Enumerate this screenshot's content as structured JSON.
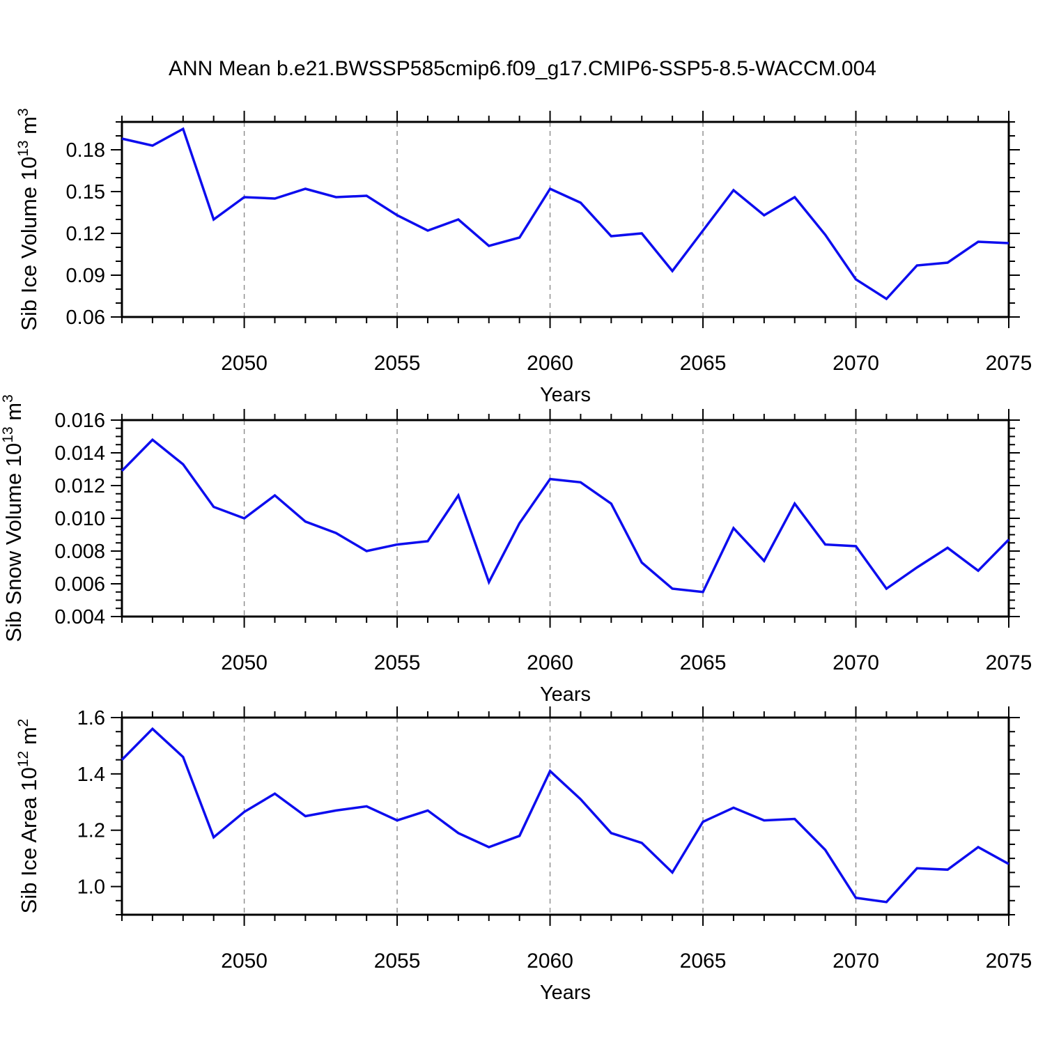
{
  "title": "ANN Mean b.e21.BWSSP585cmip6.f09_g17.CMIP6-SSP5-8.5-WACCM.004",
  "colors": {
    "line": "#0d0dee",
    "grid": "#8a8a8a",
    "axis": "#000000",
    "background": "#ffffff"
  },
  "xaxis": {
    "label": "Years",
    "start": 2046,
    "end": 2075,
    "major_ticks": [
      2050,
      2055,
      2060,
      2065,
      2070,
      2075
    ],
    "major_tick_labels": [
      "2050",
      "2055",
      "2060",
      "2065",
      "2070",
      "2075"
    ],
    "gridline_years": [
      2050,
      2055,
      2060,
      2065,
      2070
    ],
    "minor_step": 1,
    "years": [
      2046,
      2047,
      2048,
      2049,
      2050,
      2051,
      2052,
      2053,
      2054,
      2055,
      2056,
      2057,
      2058,
      2059,
      2060,
      2061,
      2062,
      2063,
      2064,
      2065,
      2066,
      2067,
      2068,
      2069,
      2070,
      2071,
      2072,
      2073,
      2074,
      2075
    ]
  },
  "chart_data": [
    {
      "type": "line",
      "name": "sib-ice-volume",
      "ylabel": "Sib Ice Volume 10^13 m^3",
      "ylabel_parts": [
        {
          "t": "Sib Ice Volume 10"
        },
        {
          "t": "13",
          "sup": true
        },
        {
          "t": " m"
        },
        {
          "t": "3",
          "sup": true
        }
      ],
      "xlabel": "Years",
      "ylim": [
        0.06,
        0.2
      ],
      "ytick_major": [
        0.06,
        0.09,
        0.12,
        0.15,
        0.18
      ],
      "ytick_labels": [
        "0.06",
        "0.09",
        "0.12",
        "0.15",
        "0.18"
      ],
      "yminor_step": 0.01,
      "grid": "x-dashed",
      "legend": "none",
      "values": [
        0.188,
        0.183,
        0.195,
        0.13,
        0.146,
        0.145,
        0.152,
        0.146,
        0.147,
        0.133,
        0.122,
        0.13,
        0.111,
        0.117,
        0.152,
        0.142,
        0.118,
        0.12,
        0.093,
        0.122,
        0.151,
        0.133,
        0.146,
        0.119,
        0.087,
        0.073,
        0.097,
        0.099,
        0.114,
        0.113
      ]
    },
    {
      "type": "line",
      "name": "sib-snow-volume",
      "ylabel": "Sib Snow Volume 10^13 m^3",
      "ylabel_parts": [
        {
          "t": "Sib Snow Volume 10"
        },
        {
          "t": "13",
          "sup": true
        },
        {
          "t": " m"
        },
        {
          "t": "3",
          "sup": true
        }
      ],
      "xlabel": "Years",
      "ylim": [
        0.004,
        0.016
      ],
      "ytick_major": [
        0.004,
        0.006,
        0.008,
        0.01,
        0.012,
        0.014,
        0.016
      ],
      "ytick_labels": [
        "0.004",
        "0.006",
        "0.008",
        "0.010",
        "0.012",
        "0.014",
        "0.016"
      ],
      "yminor_step": 0.0005,
      "grid": "x-dashed",
      "legend": "none",
      "values": [
        0.0129,
        0.0148,
        0.0133,
        0.0107,
        0.01,
        0.0114,
        0.0098,
        0.0091,
        0.008,
        0.0084,
        0.0086,
        0.0114,
        0.0061,
        0.0097,
        0.0124,
        0.0122,
        0.0109,
        0.0073,
        0.0057,
        0.0055,
        0.0094,
        0.0074,
        0.0109,
        0.0084,
        0.0083,
        0.0057,
        0.007,
        0.0082,
        0.0068,
        0.0087
      ]
    },
    {
      "type": "line",
      "name": "sib-ice-area",
      "ylabel": "Sib Ice Area 10^12 m^2",
      "ylabel_parts": [
        {
          "t": "Sib Ice Area 10"
        },
        {
          "t": "12",
          "sup": true
        },
        {
          "t": " m"
        },
        {
          "t": "2",
          "sup": true
        }
      ],
      "xlabel": "Years",
      "ylim": [
        0.9,
        1.6
      ],
      "ytick_major": [
        1.0,
        1.2,
        1.4,
        1.6
      ],
      "ytick_labels": [
        "1.0",
        "1.2",
        "1.4",
        "1.6"
      ],
      "yminor_step": 0.05,
      "grid": "x-dashed",
      "legend": "none",
      "values": [
        1.45,
        1.56,
        1.46,
        1.175,
        1.265,
        1.33,
        1.25,
        1.27,
        1.285,
        1.235,
        1.27,
        1.19,
        1.14,
        1.18,
        1.41,
        1.31,
        1.19,
        1.155,
        1.05,
        1.23,
        1.28,
        1.235,
        1.24,
        1.13,
        0.96,
        0.945,
        1.065,
        1.06,
        1.14,
        1.08
      ]
    }
  ]
}
